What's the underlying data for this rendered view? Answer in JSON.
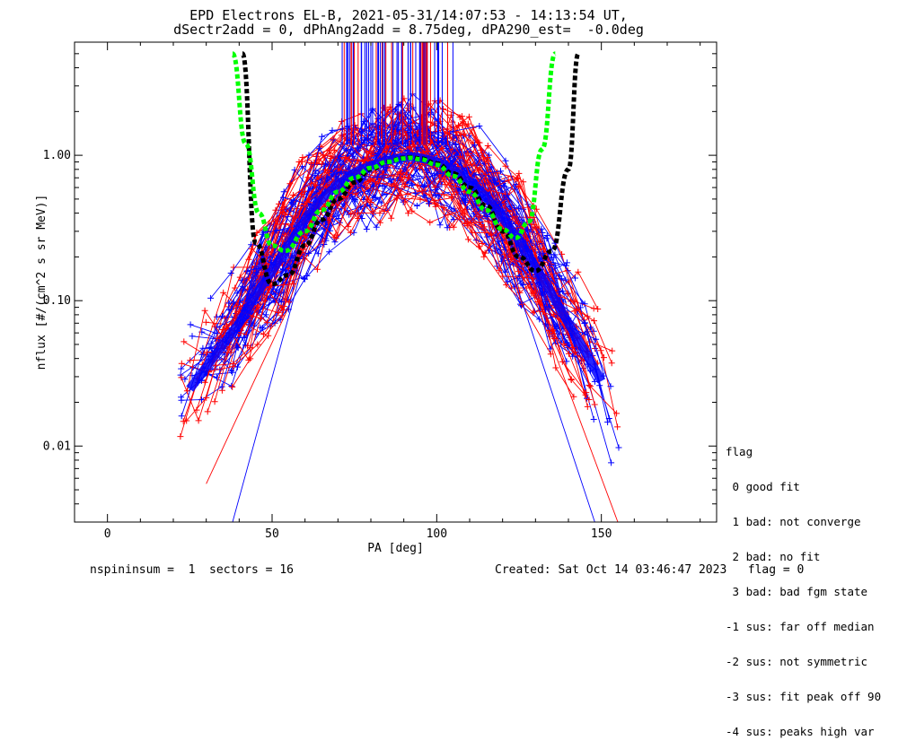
{
  "title": {
    "line1": "EPD Electrons EL-B, 2021-05-31/14:07:53 - 14:13:54 UT,",
    "line2": "dSectr2add = 0, dPhAng2add = 8.75deg, dPA290_est=  -0.0deg"
  },
  "footer": {
    "left": "nspininsum =  1  sectors = 16",
    "right": "Created: Sat Oct 14 03:46:47 2023   flag = 0"
  },
  "legend": {
    "title": "flag",
    "items": [
      " 0 good fit",
      " 1 bad: not converge",
      " 2 bad: no fit",
      " 3 bad: bad fgm state",
      "-1 sus: far off median",
      "-2 sus: not symmetric",
      "-3 sus: fit peak off 90",
      "-4 sus: peaks high var"
    ]
  },
  "chart_data": {
    "type": "line",
    "xlabel": "PA [deg]",
    "ylabel": "nflux [#/(cm^2 s sr MeV)]",
    "xlim": [
      -10,
      185
    ],
    "ylim": [
      0.003,
      6.0
    ],
    "yscale": "log",
    "xticks": [
      "0",
      "50",
      "100",
      "150"
    ],
    "yticks": [
      "0.01",
      "0.10",
      "1.00"
    ],
    "colors": {
      "blue": "#0000ff",
      "red": "#ff0000",
      "black": "#000000",
      "green": "#00ff00"
    },
    "series": [
      {
        "x": [
          22,
          30,
          40,
          45,
          50,
          55,
          60,
          65,
          70,
          75,
          80,
          85,
          90,
          92,
          95,
          100,
          105,
          110,
          115,
          120,
          125,
          130,
          135,
          140,
          145,
          150,
          155,
          158
        ],
        "y": [
          0.02,
          0.035,
          0.07,
          0.11,
          0.16,
          0.24,
          0.36,
          0.5,
          0.63,
          0.76,
          0.85,
          0.92,
          0.97,
          0.98,
          0.96,
          0.9,
          0.8,
          0.66,
          0.52,
          0.37,
          0.26,
          0.17,
          0.11,
          0.07,
          0.045,
          0.028,
          0.016,
          0.012
        ]
      },
      {
        "x": [
          41,
          45,
          50,
          55,
          60,
          65,
          70,
          75,
          80,
          85,
          90,
          92,
          95,
          100,
          105,
          110,
          115,
          120,
          125,
          130,
          135,
          140,
          143
        ],
        "y": [
          5.0,
          0.25,
          0.13,
          0.15,
          0.24,
          0.36,
          0.5,
          0.65,
          0.8,
          0.9,
          0.96,
          0.97,
          0.95,
          0.88,
          0.75,
          0.6,
          0.45,
          0.3,
          0.2,
          0.16,
          0.22,
          0.8,
          5.0
        ]
      },
      {
        "x": [
          38,
          42,
          46,
          50,
          54,
          60,
          65,
          70,
          75,
          80,
          85,
          90,
          92,
          95,
          100,
          105,
          110,
          115,
          120,
          124,
          128,
          132,
          136
        ],
        "y": [
          5.0,
          1.2,
          0.4,
          0.24,
          0.22,
          0.3,
          0.42,
          0.56,
          0.7,
          0.82,
          0.9,
          0.95,
          0.96,
          0.94,
          0.86,
          0.72,
          0.56,
          0.42,
          0.31,
          0.27,
          0.35,
          1.1,
          5.0
        ]
      }
    ]
  }
}
